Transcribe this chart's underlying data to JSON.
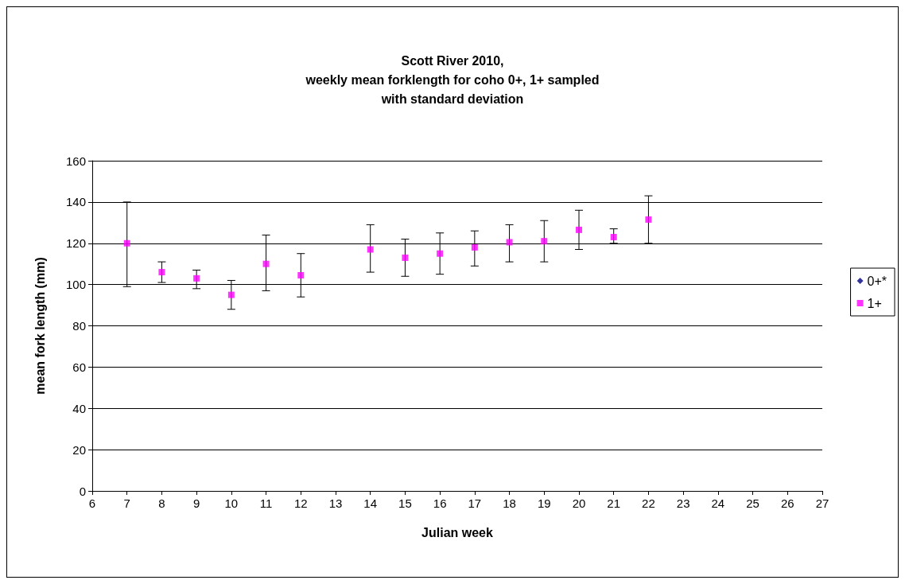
{
  "chart_data": {
    "type": "scatter",
    "title": "Scott River 2010,\nweekly mean forklength for coho 0+, 1+ sampled\nwith standard deviation",
    "xlabel": "Julian week",
    "ylabel": "mean fork length (mm)",
    "x": [
      7,
      8,
      9,
      10,
      11,
      12,
      14,
      15,
      16,
      17,
      18,
      19,
      20,
      21,
      22
    ],
    "series": [
      {
        "name": "0+*",
        "color": "#000080",
        "marker": "diamond",
        "values": [
          null,
          null,
          null,
          null,
          null,
          null,
          null,
          null,
          null,
          null,
          null,
          null,
          null,
          null,
          null
        ]
      },
      {
        "name": "1+",
        "color": "#ff00ff",
        "marker": "square",
        "values": [
          120,
          106,
          103,
          95,
          110,
          104.5,
          117,
          113,
          115,
          118,
          120.5,
          121,
          126.5,
          123,
          131.5
        ],
        "errors": [
          [
            99,
            140
          ],
          [
            101,
            111
          ],
          [
            98,
            107
          ],
          [
            88,
            102
          ],
          [
            97,
            124
          ],
          [
            94,
            115
          ],
          [
            106,
            129
          ],
          [
            104,
            122
          ],
          [
            105,
            125
          ],
          [
            109,
            126
          ],
          [
            111,
            129
          ],
          [
            111,
            131
          ],
          [
            117,
            136
          ],
          [
            120,
            127
          ],
          [
            120,
            143
          ]
        ]
      }
    ],
    "xlim": [
      6,
      27
    ],
    "xticks": [
      6,
      7,
      8,
      9,
      10,
      11,
      12,
      13,
      14,
      15,
      16,
      17,
      18,
      19,
      20,
      21,
      22,
      23,
      24,
      25,
      26,
      27
    ],
    "ylim": [
      0,
      160
    ],
    "yticks": [
      0,
      20,
      40,
      60,
      80,
      100,
      120,
      140,
      160
    ],
    "grid": "y",
    "legend": "right"
  }
}
